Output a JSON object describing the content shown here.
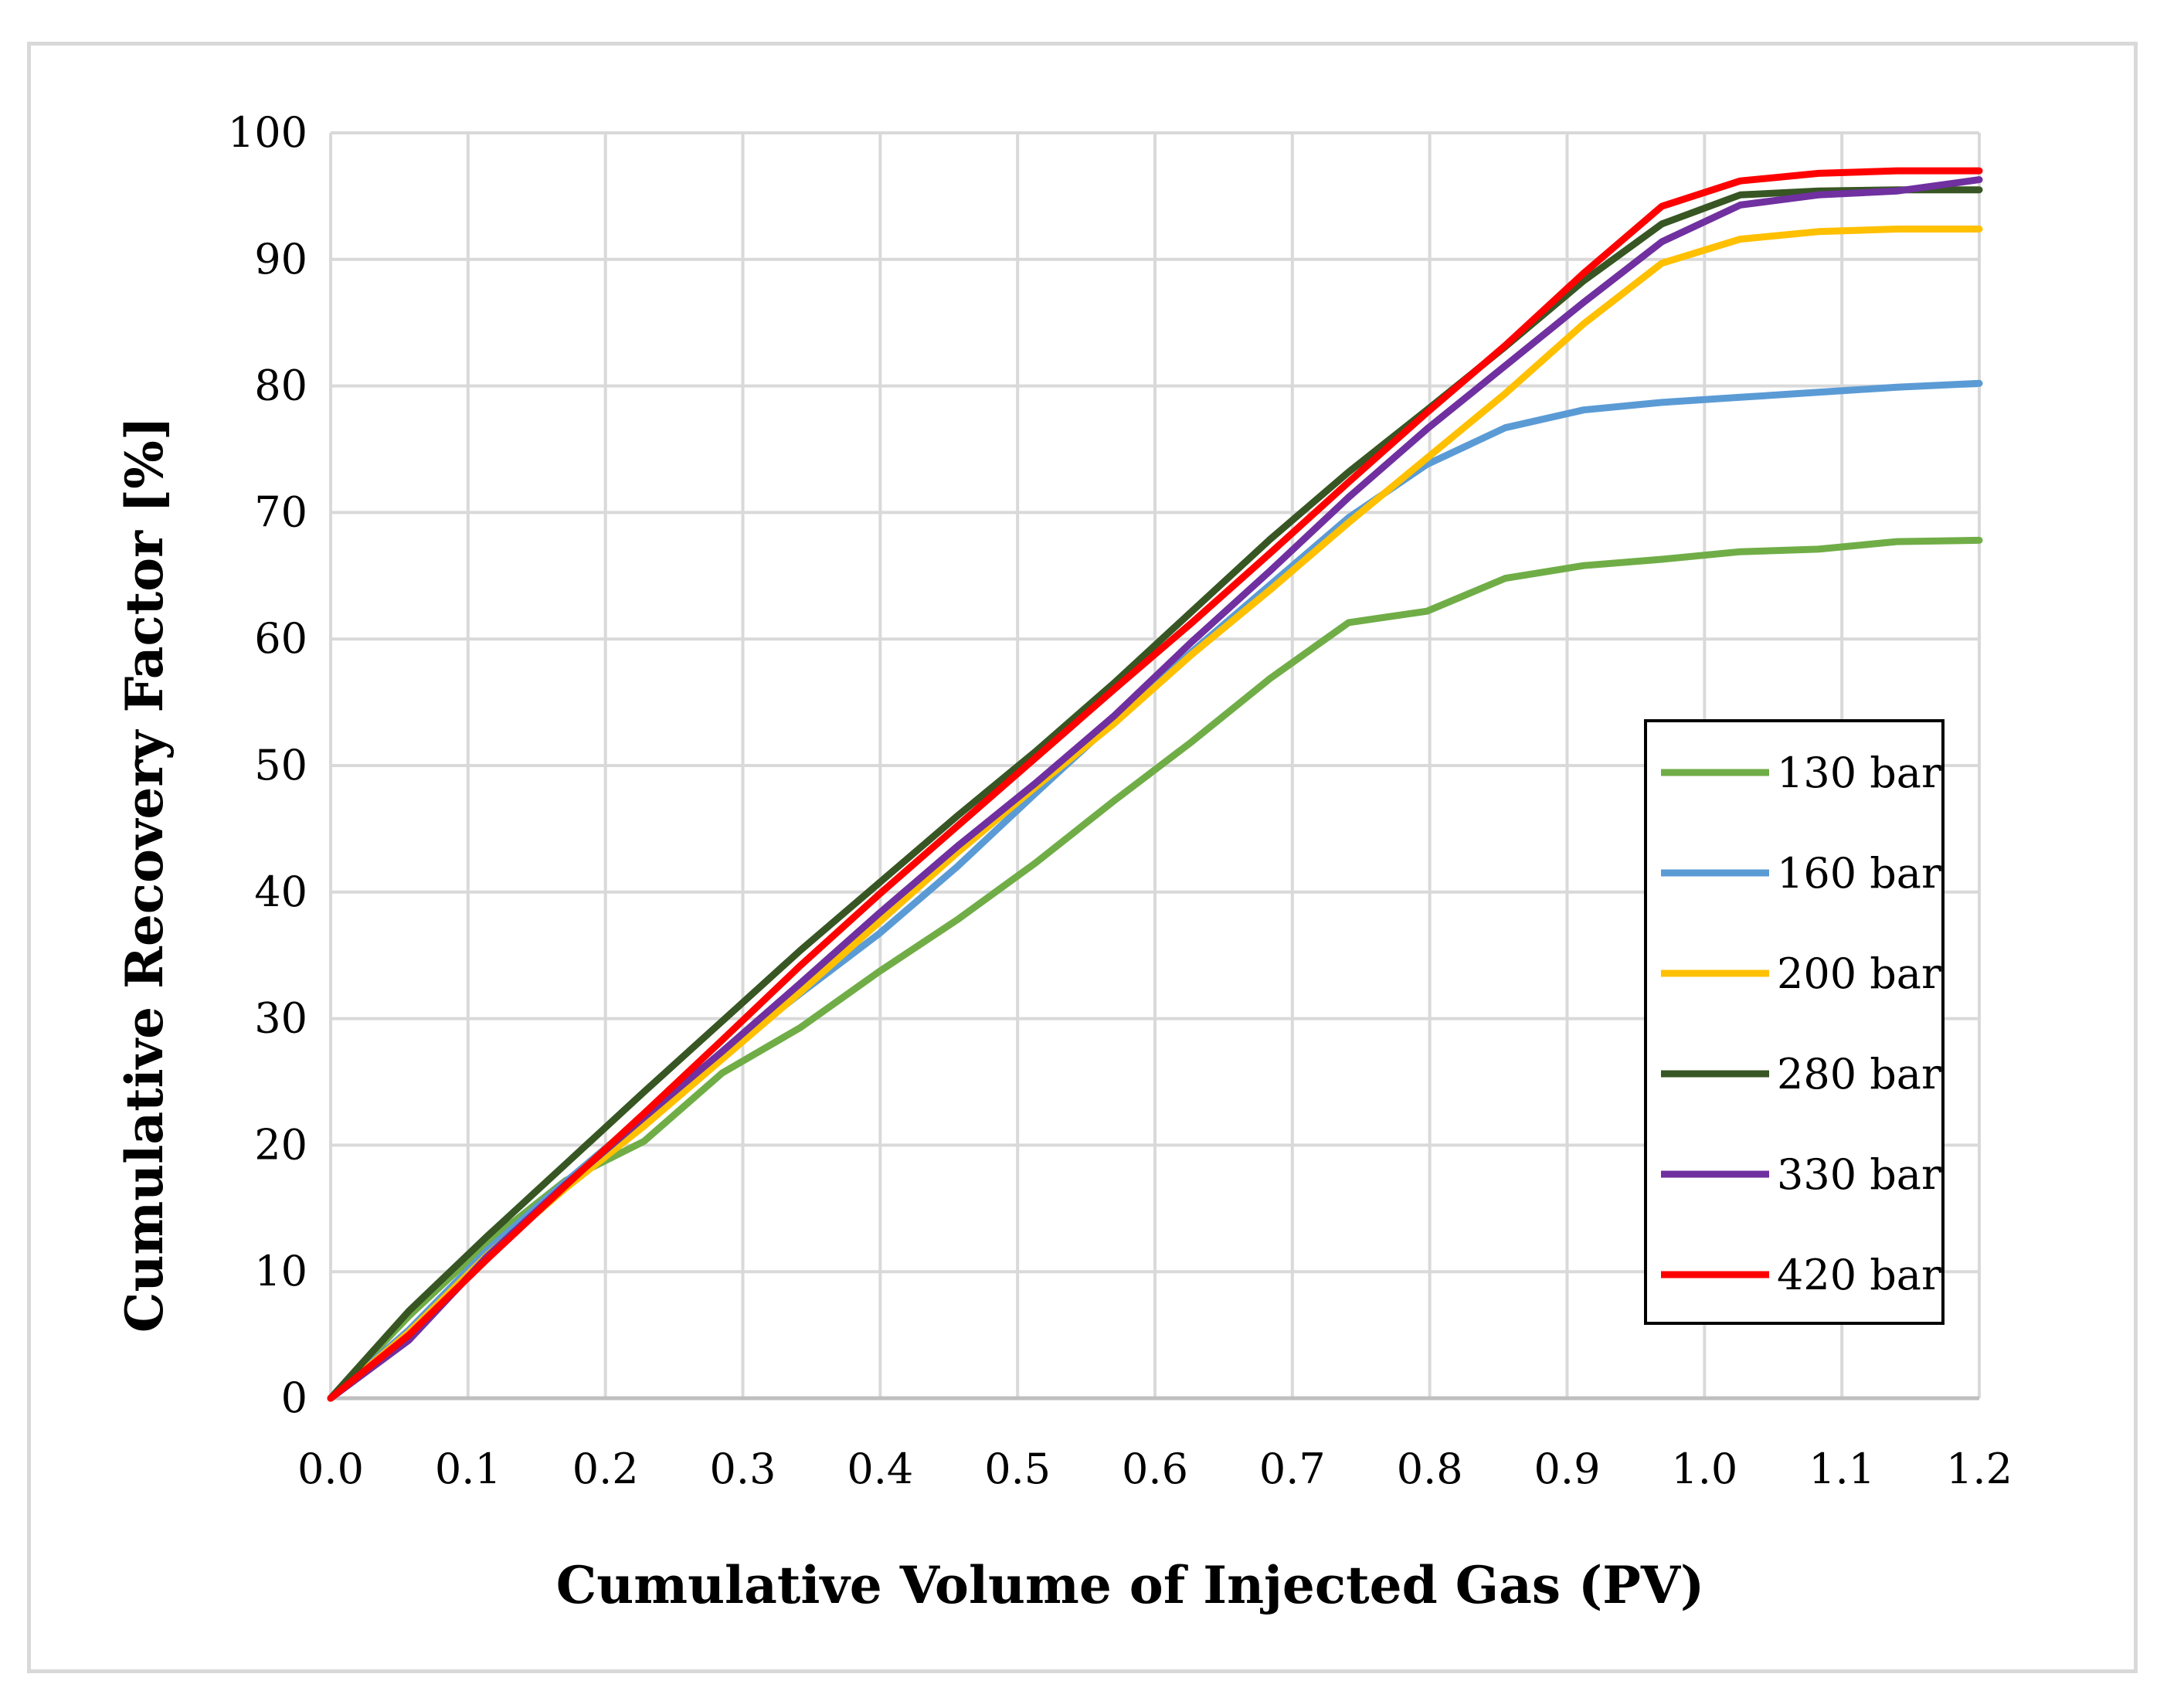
{
  "chart_data": {
    "type": "line",
    "title": "",
    "xlabel": "Cumulative Volume of Injected Gas (PV)",
    "ylabel": "Cumulative Recovery Factor [%]",
    "xlim": [
      0.0,
      1.2
    ],
    "ylim": [
      0,
      100
    ],
    "x_ticks": [
      "0.0",
      "0.1",
      "0.2",
      "0.3",
      "0.4",
      "0.5",
      "0.6",
      "0.7",
      "0.8",
      "0.9",
      "1.0",
      "1.1",
      "1.2"
    ],
    "y_ticks": [
      "0",
      "10",
      "20",
      "30",
      "40",
      "50",
      "60",
      "70",
      "80",
      "90",
      "100"
    ],
    "grid": true,
    "legend_position": "bottom-right",
    "series": [
      {
        "name": "130 bar",
        "color": "#70ad47",
        "x": [
          0.0,
          0.057,
          0.114,
          0.171,
          0.228,
          0.285,
          0.342,
          0.399,
          0.456,
          0.513,
          0.57,
          0.627,
          0.684,
          0.741,
          0.798,
          0.855,
          0.912,
          0.969,
          1.026,
          1.083,
          1.14,
          1.2
        ],
        "y": [
          0,
          6.5,
          12.3,
          17.2,
          20.3,
          25.7,
          29.3,
          33.7,
          37.8,
          42.3,
          47.2,
          51.9,
          56.9,
          61.3,
          62.2,
          64.8,
          65.8,
          66.3,
          66.9,
          67.1,
          67.7,
          67.8
        ]
      },
      {
        "name": "160 bar",
        "color": "#5b9bd5",
        "x": [
          0.0,
          0.057,
          0.114,
          0.171,
          0.228,
          0.285,
          0.342,
          0.399,
          0.456,
          0.513,
          0.57,
          0.627,
          0.684,
          0.741,
          0.798,
          0.855,
          0.912,
          0.969,
          1.026,
          1.083,
          1.14,
          1.2
        ],
        "y": [
          0,
          5.4,
          11.7,
          17.1,
          22.3,
          27.2,
          32.0,
          36.7,
          42.0,
          47.8,
          53.5,
          59.0,
          64.3,
          69.6,
          73.8,
          76.7,
          78.1,
          78.7,
          79.1,
          79.5,
          79.9,
          80.2
        ]
      },
      {
        "name": "200 bar",
        "color": "#ffc000",
        "x": [
          0.0,
          0.057,
          0.114,
          0.171,
          0.228,
          0.285,
          0.342,
          0.399,
          0.456,
          0.513,
          0.57,
          0.627,
          0.684,
          0.741,
          0.798,
          0.855,
          0.912,
          0.969,
          1.026,
          1.083,
          1.14,
          1.2
        ],
        "y": [
          0,
          5.2,
          11.3,
          16.6,
          21.5,
          26.8,
          32.1,
          37.6,
          43.1,
          48.3,
          53.3,
          58.8,
          63.9,
          69.2,
          74.3,
          79.4,
          84.9,
          89.7,
          91.6,
          92.2,
          92.4,
          92.4
        ]
      },
      {
        "name": "280 bar",
        "color": "#375623",
        "x": [
          0.0,
          0.057,
          0.114,
          0.171,
          0.228,
          0.285,
          0.342,
          0.399,
          0.456,
          0.513,
          0.57,
          0.627,
          0.684,
          0.741,
          0.798,
          0.855,
          0.912,
          0.969,
          1.026,
          1.083,
          1.14,
          1.2
        ],
        "y": [
          0,
          6.9,
          12.8,
          18.5,
          24.2,
          29.8,
          35.4,
          40.7,
          46.0,
          51.1,
          56.5,
          62.2,
          67.9,
          73.2,
          78.1,
          83.1,
          88.3,
          92.8,
          95.1,
          95.4,
          95.5,
          95.5
        ]
      },
      {
        "name": "330 bar",
        "color": "#7030a0",
        "x": [
          0.0,
          0.057,
          0.114,
          0.171,
          0.228,
          0.285,
          0.342,
          0.399,
          0.456,
          0.513,
          0.57,
          0.627,
          0.684,
          0.741,
          0.798,
          0.855,
          0.912,
          0.969,
          1.026,
          1.083,
          1.14,
          1.2
        ],
        "y": [
          0,
          4.6,
          11.2,
          16.9,
          22.2,
          27.4,
          32.8,
          38.3,
          43.6,
          48.6,
          53.9,
          59.8,
          65.4,
          71.2,
          76.6,
          81.6,
          86.6,
          91.4,
          94.3,
          95.1,
          95.4,
          96.3
        ]
      },
      {
        "name": "420 bar",
        "color": "#ff0000",
        "x": [
          0.0,
          0.057,
          0.114,
          0.171,
          0.228,
          0.285,
          0.342,
          0.399,
          0.456,
          0.513,
          0.57,
          0.627,
          0.684,
          0.741,
          0.798,
          0.855,
          0.912,
          0.969,
          1.026,
          1.083,
          1.14,
          1.2
        ],
        "y": [
          0,
          5.0,
          11.0,
          16.8,
          22.5,
          28.3,
          34.2,
          39.8,
          45.2,
          50.6,
          56.0,
          61.3,
          66.8,
          72.4,
          77.9,
          83.2,
          88.9,
          94.2,
          96.2,
          96.8,
          97.0,
          97.0
        ]
      }
    ]
  }
}
